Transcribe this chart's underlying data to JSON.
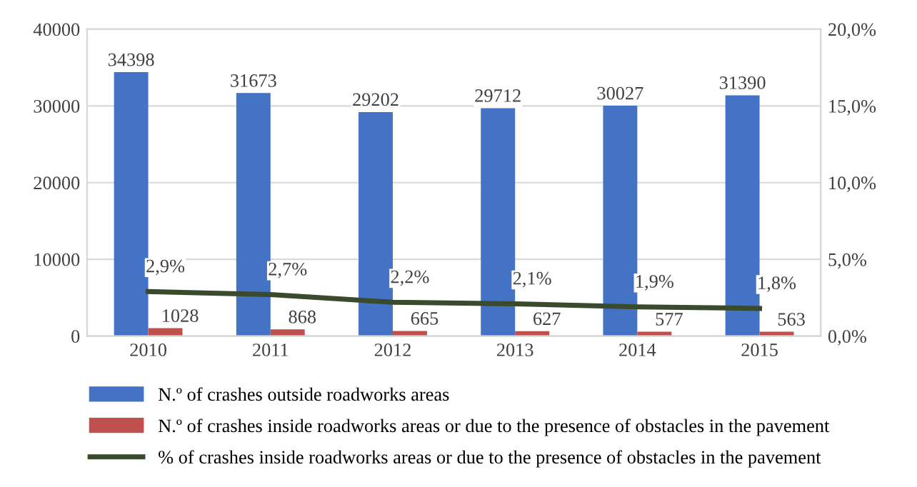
{
  "chart_data": {
    "type": "bar",
    "categories": [
      "2010",
      "2011",
      "2012",
      "2013",
      "2014",
      "2015"
    ],
    "series": [
      {
        "name": "N.º of crashes outside roadworks areas",
        "color": "#4472c4",
        "values": [
          34398,
          31673,
          29202,
          29712,
          30027,
          31390
        ],
        "value_labels": [
          "34398",
          "31673",
          "29202",
          "29712",
          "30027",
          "31390"
        ]
      },
      {
        "name": "N.º of crashes inside roadworks areas or due to the presence of obstacles in the pavement",
        "color": "#c0504d",
        "values": [
          1028,
          868,
          665,
          627,
          577,
          563
        ],
        "value_labels": [
          "1028",
          "868",
          "665",
          "627",
          "577",
          "563"
        ]
      },
      {
        "name": "% of crashes inside roadworks areas or due to the presence of obstacles in the pavement",
        "type": "line",
        "axis": "y2",
        "color": "#3a4a2c",
        "values": [
          2.9,
          2.7,
          2.2,
          2.1,
          1.9,
          1.8
        ],
        "value_labels": [
          "2,9%",
          "2,7%",
          "2,2%",
          "2,1%",
          "1,9%",
          "1,8%"
        ]
      }
    ],
    "ylim": [
      0,
      40000
    ],
    "yticks": [
      0,
      10000,
      20000,
      30000,
      40000
    ],
    "y2lim": [
      0,
      20
    ],
    "y2ticks": [
      {
        "value": 0,
        "label": "0,0%"
      },
      {
        "value": 5,
        "label": "5,0%"
      },
      {
        "value": 10,
        "label": "10,0%"
      },
      {
        "value": 15,
        "label": "15,0%"
      },
      {
        "value": 20,
        "label": "20,0%"
      }
    ],
    "grid": "y",
    "legend": "bottom",
    "marker": "none",
    "line_style": "solid"
  }
}
